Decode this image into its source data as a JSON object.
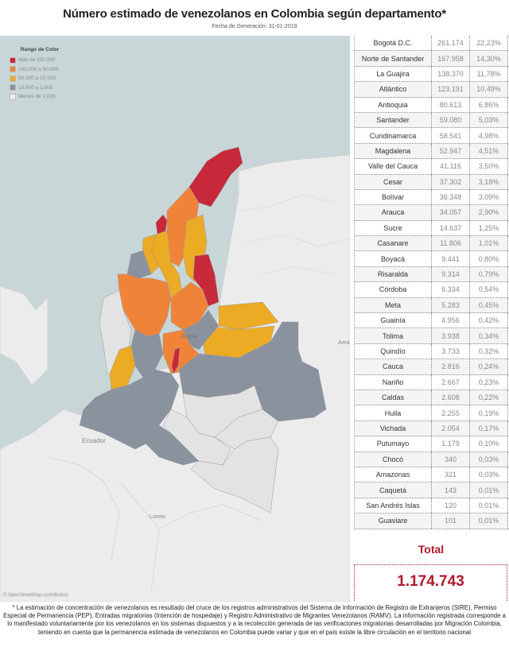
{
  "header": {
    "title": "Número estimado de venezolanos en Colombia según departamento*",
    "subtitle": "Fecha de Generación: 31-01-2019"
  },
  "legend": {
    "title": "Rango de Color",
    "items": [
      {
        "label": "Más de 100.000",
        "color": "#c7283a"
      },
      {
        "label": "100.000 a 50.000",
        "color": "#ef8439"
      },
      {
        "label": "50.000 a 10.000",
        "color": "#ecab24"
      },
      {
        "label": "10.000 a 1.000",
        "color": "#8a929d"
      },
      {
        "label": "Menos de 1.000",
        "color": "#e3e3e3"
      }
    ]
  },
  "map": {
    "labels": {
      "ecuador": "Ecuador",
      "loreto": "Loreto",
      "ama": "Ama",
      "bogota": "Bogotá"
    },
    "attribution": "© OpenStreetMap contributors"
  },
  "table": {
    "rows": [
      {
        "name": "Bogotá D.C.",
        "value": "261.174",
        "pct": "22,23%"
      },
      {
        "name": "Norte de Santander",
        "value": "167.958",
        "pct": "14,30%"
      },
      {
        "name": "La Guajira",
        "value": "138.370",
        "pct": "11,78%"
      },
      {
        "name": "Atlántico",
        "value": "123.191",
        "pct": "10,49%"
      },
      {
        "name": "Antioquia",
        "value": "80.613",
        "pct": "6,86%"
      },
      {
        "name": "Santander",
        "value": "59.080",
        "pct": "5,03%"
      },
      {
        "name": "Cundinamarca",
        "value": "58.541",
        "pct": "4,98%"
      },
      {
        "name": "Magdalena",
        "value": "52.947",
        "pct": "4,51%"
      },
      {
        "name": "Valle del Cauca",
        "value": "41.116",
        "pct": "3,50%"
      },
      {
        "name": "Cesar",
        "value": "37.302",
        "pct": "3,18%"
      },
      {
        "name": "Bolívar",
        "value": "36.348",
        "pct": "3,09%"
      },
      {
        "name": "Arauca",
        "value": "34.057",
        "pct": "2,90%"
      },
      {
        "name": "Sucre",
        "value": "14.637",
        "pct": "1,25%"
      },
      {
        "name": "Casanare",
        "value": "11.806",
        "pct": "1,01%"
      },
      {
        "name": "Boyacá",
        "value": "9.441",
        "pct": "0,80%"
      },
      {
        "name": "Risaralda",
        "value": "9.314",
        "pct": "0,79%"
      },
      {
        "name": "Córdoba",
        "value": "6.334",
        "pct": "0,54%"
      },
      {
        "name": "Meta",
        "value": "5.283",
        "pct": "0,45%"
      },
      {
        "name": "Guainía",
        "value": "4.956",
        "pct": "0,42%"
      },
      {
        "name": "Tolima",
        "value": "3.938",
        "pct": "0,34%"
      },
      {
        "name": "Quindío",
        "value": "3.733",
        "pct": "0,32%"
      },
      {
        "name": "Cauca",
        "value": "2.816",
        "pct": "0,24%"
      },
      {
        "name": "Nariño",
        "value": "2.667",
        "pct": "0,23%"
      },
      {
        "name": "Caldas",
        "value": "2.608",
        "pct": "0,22%"
      },
      {
        "name": "Huila",
        "value": "2.255",
        "pct": "0,19%"
      },
      {
        "name": "Vichada",
        "value": "2.054",
        "pct": "0,17%"
      },
      {
        "name": "Putumayo",
        "value": "1.179",
        "pct": "0,10%"
      },
      {
        "name": "Chocó",
        "value": "340",
        "pct": "0,03%"
      },
      {
        "name": "Amazonas",
        "value": "321",
        "pct": "0,03%"
      },
      {
        "name": "Caquetá",
        "value": "143",
        "pct": "0,01%"
      },
      {
        "name": "San Andrés Islas",
        "value": "120",
        "pct": "0,01%"
      },
      {
        "name": "Guaviare",
        "value": "101",
        "pct": "0,01%"
      }
    ]
  },
  "total": {
    "label": "Total",
    "value": "1.174.743"
  },
  "footnote": "* La estimación de concentración de venezolanos es resultado del cruce de los registros administrativos del Sistema de Información de Registro de Extranjeros (SIRE), Permiso Especial de Permanencia (PEP), Entradas migratorias (Intención de hospedaje) y Registro Administrativo de Migrantes Venezolanos (RAMV). La información registrada corresponde a lo manifestado voluntariamente por los venezolanos en los sistemas dispuestos y a la recolección generada de las verificaciones migratorias desarrolladas por Migración Colombia, teniendo en cuenta que la permanencia estimada de venezolanos en Colombia puede variar y que en el país existe la libre circulación en el territorio nacional"
}
